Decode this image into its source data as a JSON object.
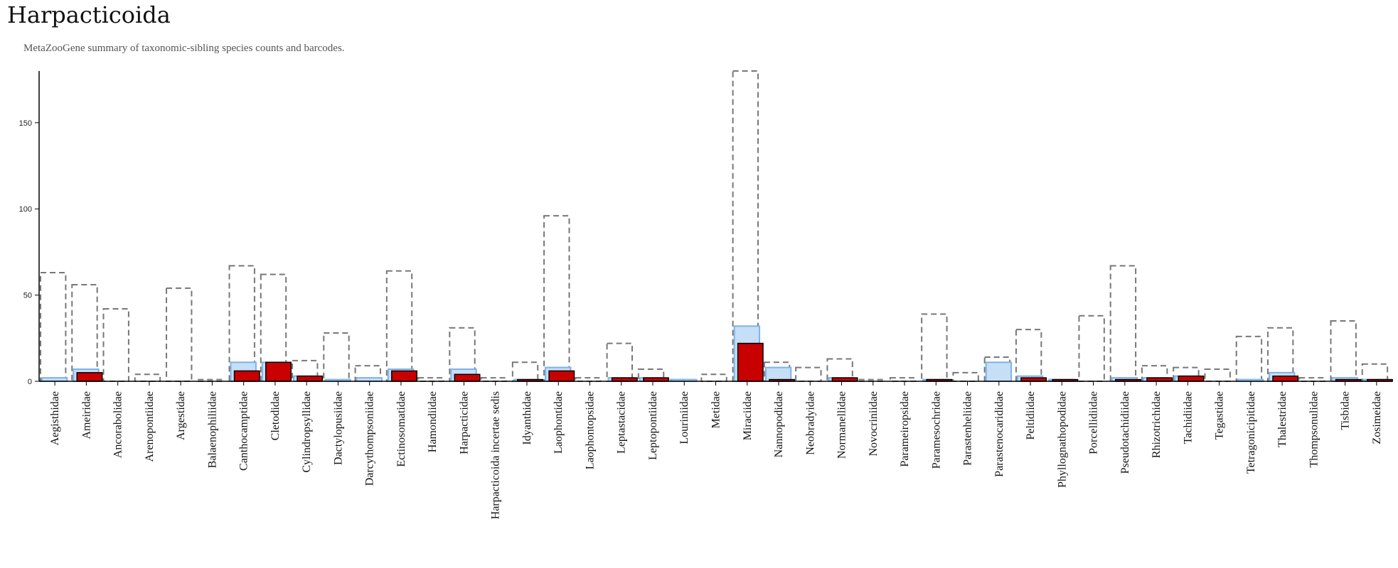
{
  "title": "Harpacticoida",
  "subtitle": "MetaZooGene summary of taxonomic-sibling species counts and barcodes.",
  "colors": {
    "sibling_outline": "#777777",
    "barcoded_fill": "#c6dff7",
    "barcoded_stroke": "#7fb2e8",
    "mzg_fill": "#c80000",
    "axis": "#000000"
  },
  "chart_data": {
    "type": "bar",
    "title": "Harpacticoida",
    "xlabel": "",
    "ylabel": "",
    "ylim": [
      0,
      180
    ],
    "yticks": [
      150,
      100,
      50,
      0
    ],
    "grid": false,
    "legend": "none",
    "categories": [
      "Aegisthidae",
      "Ameiridae",
      "Ancorabolidae",
      "Arenopontiidae",
      "Argestidae",
      "Balaenophiliidae",
      "Canthocamptidae",
      "Cletodidae",
      "Cylindropsyllidae",
      "Dactylopusiidae",
      "Darcythompsoniidae",
      "Ectinosomatidae",
      "Hamondiidae",
      "Harpacticidae",
      "Harpacticoida incertae sedis",
      "Idyanthidae",
      "Laophontidae",
      "Laophontopsidae",
      "Leptastacidae",
      "Leptopontiidae",
      "Louriniidae",
      "Metidae",
      "Miraciidae",
      "Nannopodidae",
      "Neobradyidae",
      "Normanellidae",
      "Novocriniidae",
      "Parameiropsidae",
      "Paramesochridae",
      "Parastenheliidae",
      "Parastenocarididae",
      "Peltidiidae",
      "Phyllognathopodidae",
      "Porcellidiidae",
      "Pseudotachidiidae",
      "Rhizotrichidae",
      "Tachidiidae",
      "Tegastidae",
      "Tetragonicipitidae",
      "Thalestridae",
      "Thompsonulidae",
      "Tisbidae",
      "Zosimeidae"
    ],
    "series": [
      {
        "style": "dashed-outline",
        "values": [
          63,
          56,
          42,
          4,
          54,
          1,
          67,
          62,
          12,
          28,
          9,
          64,
          2,
          31,
          2,
          11,
          96,
          2,
          22,
          7,
          1,
          4,
          180,
          11,
          8,
          13,
          1,
          2,
          39,
          5,
          14,
          30,
          0,
          38,
          67,
          9,
          8,
          7,
          26,
          31,
          2,
          35,
          10
        ]
      },
      {
        "style": "light-blue",
        "values": [
          2,
          7,
          0,
          0,
          0,
          0,
          11,
          11,
          3,
          1,
          2,
          7,
          0,
          7,
          0,
          1,
          8,
          0,
          2,
          2,
          1,
          0,
          32,
          8,
          0,
          2,
          0,
          0,
          1,
          0,
          11,
          3,
          1,
          0,
          2,
          2,
          3,
          0,
          1,
          5,
          0,
          2,
          1
        ]
      },
      {
        "style": "red",
        "values": [
          0,
          5,
          0,
          0,
          0,
          0,
          6,
          11,
          3,
          0,
          0,
          6,
          0,
          4,
          0,
          1,
          6,
          0,
          2,
          2,
          0,
          0,
          22,
          1,
          0,
          2,
          0,
          0,
          1,
          0,
          0,
          2,
          1,
          0,
          1,
          2,
          3,
          0,
          0,
          3,
          0,
          1,
          1
        ]
      }
    ]
  }
}
